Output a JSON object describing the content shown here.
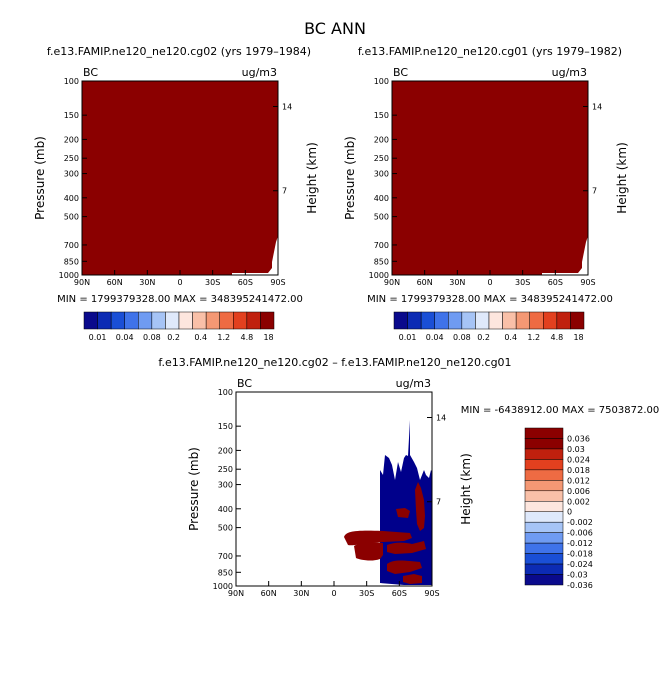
{
  "title": "BC ANN",
  "panels": [
    {
      "title": "f.e13.FAMIP.ne120_ne120.cg02 (yrs 1979–1984)",
      "corner_left": "BC",
      "corner_right": "ug/m3",
      "stats": "MIN = 1799379328.00   MAX = 348395241472.00"
    },
    {
      "title": "f.e13.FAMIP.ne120_ne120.cg01 (yrs 1979–1982)",
      "corner_left": "BC",
      "corner_right": "ug/m3",
      "stats": "MIN = 1799379328.00   MAX = 348395241472.00"
    },
    {
      "title": "f.e13.FAMIP.ne120_ne120.cg02 – f.e13.FAMIP.ne120_ne120.cg01",
      "corner_left": "BC",
      "corner_right": "ug/m3",
      "stats": "MIN = -6438912.00   MAX = 7503872.00"
    }
  ],
  "colors": {
    "dark_red": "#8b0000",
    "dark_blue": "#00008b",
    "mean_colorbar": [
      "#0a0a8c",
      "#0c2bb4",
      "#1a4fd6",
      "#3f73ea",
      "#6f9bf2",
      "#a6c4f6",
      "#dfe9fb",
      "#fde6de",
      "#f9c0a8",
      "#f49874",
      "#ee6b43",
      "#e2401f",
      "#c0200e",
      "#8b0000"
    ],
    "diff_colorbar": [
      "#8b0000",
      "#c0200e",
      "#e2401f",
      "#ee6b43",
      "#f49874",
      "#f9c0a8",
      "#fde6de",
      "#dfe9fb",
      "#a6c4f6",
      "#6f9bf2",
      "#3f73ea",
      "#1a4fd6",
      "#0c2bb4",
      "#0a0a8c"
    ]
  },
  "chart_data": [
    {
      "type": "heatmap",
      "title": "f.e13.FAMIP.ne120_ne120.cg02 (yrs 1979–1984)",
      "xlabel": "",
      "ylabel": "Pressure (mb)",
      "ylabel_right": "Height (km)",
      "x_ticks": [
        "90N",
        "60N",
        "30N",
        "0",
        "30S",
        "60S",
        "90S"
      ],
      "y_ticks": [
        "100",
        "150",
        "200",
        "250",
        "300",
        "400",
        "500",
        "700",
        "850",
        "1000"
      ],
      "y_right_ticks": [
        "14",
        "7"
      ],
      "y_scale": "log",
      "ylim": [
        1000,
        100
      ],
      "units": "ug/m3",
      "colorbar_labels": [
        "0.01",
        "0.04",
        "0.08",
        "0.2",
        "0.4",
        "1.2",
        "4.8",
        "18"
      ],
      "field": "saturated at top color (dark red) everywhere",
      "min": 1799379328.0,
      "max": 348395241472.0
    },
    {
      "type": "heatmap",
      "title": "f.e13.FAMIP.ne120_ne120.cg01 (yrs 1979–1982)",
      "xlabel": "",
      "ylabel": "Pressure (mb)",
      "ylabel_right": "Height (km)",
      "x_ticks": [
        "90N",
        "60N",
        "30N",
        "0",
        "30S",
        "60S",
        "90S"
      ],
      "y_ticks": [
        "100",
        "150",
        "200",
        "250",
        "300",
        "400",
        "500",
        "700",
        "850",
        "1000"
      ],
      "y_right_ticks": [
        "14",
        "7"
      ],
      "y_scale": "log",
      "ylim": [
        1000,
        100
      ],
      "units": "ug/m3",
      "colorbar_labels": [
        "0.01",
        "0.04",
        "0.08",
        "0.2",
        "0.4",
        "1.2",
        "4.8",
        "18"
      ],
      "field": "saturated at top color (dark red) everywhere",
      "min": 1799379328.0,
      "max": 348395241472.0
    },
    {
      "type": "heatmap",
      "title": "f.e13.FAMIP.ne120_ne120.cg02 – f.e13.FAMIP.ne120_ne120.cg01",
      "xlabel": "",
      "ylabel": "Pressure (mb)",
      "ylabel_right": "Height (km)",
      "x_ticks": [
        "90N",
        "60N",
        "30N",
        "0",
        "30S",
        "60S",
        "90S"
      ],
      "y_ticks": [
        "100",
        "150",
        "200",
        "250",
        "300",
        "400",
        "500",
        "700",
        "850",
        "1000"
      ],
      "y_right_ticks": [
        "14",
        "7"
      ],
      "y_scale": "log",
      "ylim": [
        1000,
        100
      ],
      "units": "ug/m3",
      "colorbar_labels": [
        "0.036",
        "0.03",
        "0.024",
        "0.018",
        "0.012",
        "0.006",
        "0.002",
        "0",
        "-0.002",
        "-0.006",
        "-0.012",
        "-0.018",
        "-0.024",
        "-0.03",
        "-0.036"
      ],
      "field": "nonzero only south of ~10S below ~250 mb; mixed extreme positive/negative",
      "min": -6438912.0,
      "max": 7503872.0
    }
  ]
}
